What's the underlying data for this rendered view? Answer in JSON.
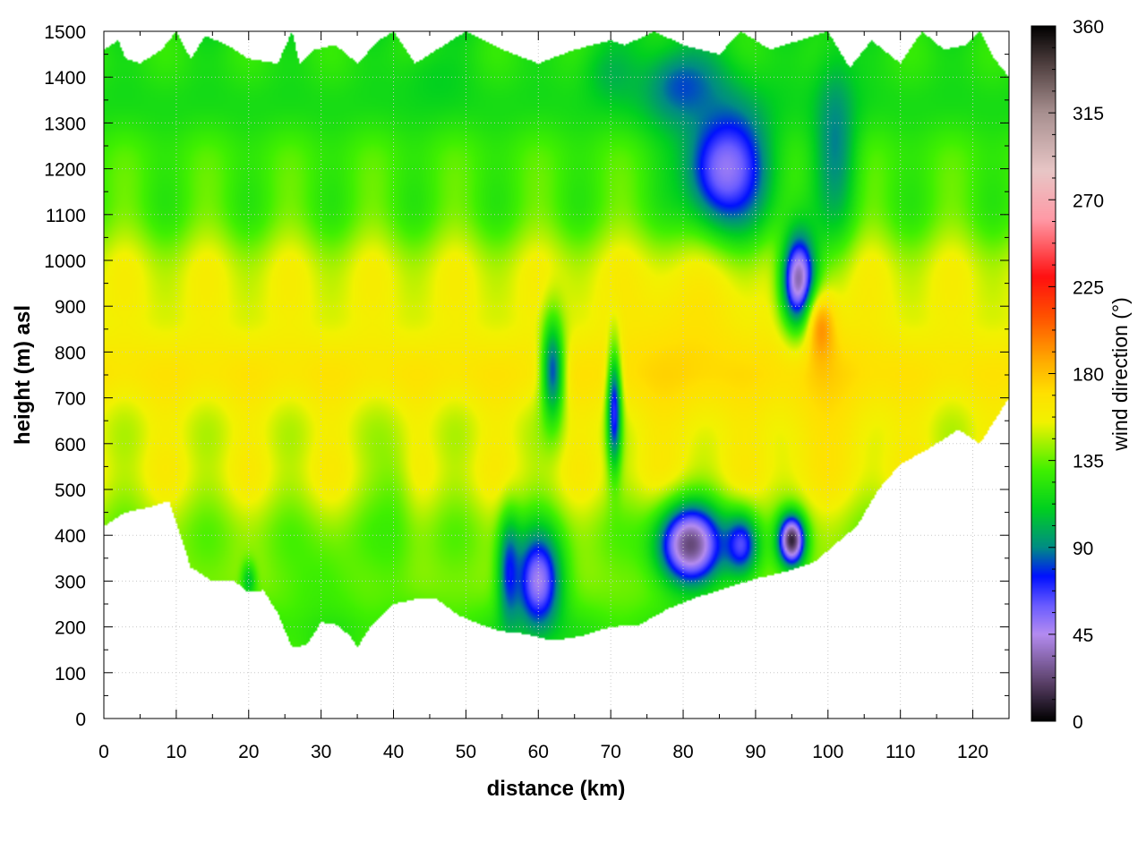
{
  "chart_data": {
    "type": "heatmap",
    "title": "",
    "xlabel": "distance (km)",
    "ylabel": "height (m) asl",
    "xlim": [
      0,
      125
    ],
    "ylim": [
      0,
      1500
    ],
    "x_ticks": [
      0,
      10,
      20,
      30,
      40,
      50,
      60,
      70,
      80,
      90,
      100,
      110,
      120
    ],
    "y_ticks": [
      0,
      100,
      200,
      300,
      400,
      500,
      600,
      700,
      800,
      900,
      1000,
      1100,
      1200,
      1300,
      1400,
      1500
    ],
    "grid": true,
    "colorbar": {
      "label": "wind direction (°)",
      "range": [
        0,
        360
      ],
      "ticks": [
        0,
        45,
        90,
        135,
        180,
        225,
        270,
        315,
        360
      ],
      "stops": [
        {
          "value": 0,
          "color": "#000000"
        },
        {
          "value": 20,
          "color": "#5a4068"
        },
        {
          "value": 45,
          "color": "#b48cf0"
        },
        {
          "value": 60,
          "color": "#6a5cff"
        },
        {
          "value": 75,
          "color": "#0010ff"
        },
        {
          "value": 90,
          "color": "#008c84"
        },
        {
          "value": 110,
          "color": "#00d020"
        },
        {
          "value": 130,
          "color": "#40f000"
        },
        {
          "value": 155,
          "color": "#f2f200"
        },
        {
          "value": 170,
          "color": "#ffe000"
        },
        {
          "value": 185,
          "color": "#ffb000"
        },
        {
          "value": 210,
          "color": "#ff5000"
        },
        {
          "value": 230,
          "color": "#ff1010"
        },
        {
          "value": 260,
          "color": "#ff9aa6"
        },
        {
          "value": 285,
          "color": "#e8c6c6"
        },
        {
          "value": 315,
          "color": "#a89090"
        },
        {
          "value": 340,
          "color": "#504040"
        },
        {
          "value": 360,
          "color": "#000000"
        }
      ]
    },
    "terrain_height": {
      "distance_km": [
        0,
        3,
        6,
        9,
        12,
        15,
        18,
        20,
        22,
        24,
        26,
        28,
        30,
        32,
        34,
        35,
        37,
        40,
        43,
        46,
        49,
        52,
        55,
        58,
        62,
        66,
        70,
        74,
        78,
        82,
        86,
        90,
        94,
        98,
        101,
        104,
        107,
        110,
        114,
        118,
        121,
        123,
        125
      ],
      "height_m": [
        420,
        450,
        460,
        475,
        330,
        300,
        300,
        275,
        280,
        230,
        155,
        160,
        210,
        205,
        180,
        155,
        205,
        250,
        260,
        260,
        225,
        205,
        190,
        185,
        170,
        180,
        200,
        205,
        240,
        265,
        285,
        305,
        320,
        340,
        380,
        420,
        500,
        555,
        590,
        630,
        600,
        650,
        700
      ]
    },
    "top_height": {
      "distance_km": [
        0,
        2,
        3,
        5,
        8,
        10,
        12,
        14,
        17,
        20,
        24,
        26,
        27,
        29,
        32,
        35,
        38,
        40,
        43,
        46,
        50,
        55,
        60,
        65,
        70,
        72,
        76,
        80,
        85,
        88,
        92,
        96,
        100,
        103,
        106,
        110,
        113,
        116,
        119,
        121,
        123,
        125
      ],
      "height_m": [
        1460,
        1480,
        1440,
        1430,
        1460,
        1500,
        1440,
        1490,
        1470,
        1440,
        1430,
        1500,
        1430,
        1460,
        1470,
        1430,
        1480,
        1500,
        1430,
        1460,
        1500,
        1460,
        1430,
        1460,
        1480,
        1470,
        1500,
        1470,
        1450,
        1500,
        1460,
        1480,
        1500,
        1420,
        1480,
        1430,
        1500,
        1460,
        1470,
        1500,
        1440,
        1400
      ]
    },
    "background_profile": [
      {
        "height_m": 200,
        "direction_deg": 128
      },
      {
        "height_m": 350,
        "direction_deg": 138
      },
      {
        "height_m": 550,
        "direction_deg": 152
      },
      {
        "height_m": 750,
        "direction_deg": 162
      },
      {
        "height_m": 900,
        "direction_deg": 158
      },
      {
        "height_m": 1050,
        "direction_deg": 140
      },
      {
        "height_m": 1200,
        "direction_deg": 126
      },
      {
        "height_m": 1500,
        "direction_deg": 116
      }
    ],
    "features": [
      {
        "x_km": 60,
        "y_m": 300,
        "sx_km": 3.2,
        "sy_m": 110,
        "direction_deg": 48,
        "weight": 1.0
      },
      {
        "x_km": 56,
        "y_m": 320,
        "sx_km": 1.6,
        "sy_m": 120,
        "direction_deg": 62,
        "weight": 0.8
      },
      {
        "x_km": 62,
        "y_m": 760,
        "sx_km": 1.6,
        "sy_m": 120,
        "direction_deg": 72,
        "weight": 0.9
      },
      {
        "x_km": 70.5,
        "y_m": 680,
        "sx_km": 1.0,
        "sy_m": 130,
        "direction_deg": 40,
        "weight": 0.9
      },
      {
        "x_km": 81,
        "y_m": 380,
        "sx_km": 4.5,
        "sy_m": 90,
        "direction_deg": 22,
        "weight": 1.0
      },
      {
        "x_km": 88,
        "y_m": 380,
        "sx_km": 2.5,
        "sy_m": 70,
        "direction_deg": 45,
        "weight": 0.8
      },
      {
        "x_km": 95,
        "y_m": 390,
        "sx_km": 1.8,
        "sy_m": 55,
        "direction_deg": 5,
        "weight": 1.0
      },
      {
        "x_km": 96,
        "y_m": 950,
        "sx_km": 2.5,
        "sy_m": 110,
        "direction_deg": 15,
        "weight": 1.0
      },
      {
        "x_km": 99,
        "y_m": 850,
        "sx_km": 2.0,
        "sy_m": 80,
        "direction_deg": 235,
        "weight": 0.6
      },
      {
        "x_km": 86,
        "y_m": 1200,
        "sx_km": 6.0,
        "sy_m": 140,
        "direction_deg": 50,
        "weight": 1.0
      },
      {
        "x_km": 80,
        "y_m": 1380,
        "sx_km": 6.0,
        "sy_m": 90,
        "direction_deg": 78,
        "weight": 0.9
      },
      {
        "x_km": 101,
        "y_m": 1250,
        "sx_km": 3.0,
        "sy_m": 200,
        "direction_deg": 80,
        "weight": 0.8
      },
      {
        "x_km": 70,
        "y_m": 1410,
        "sx_km": 4.0,
        "sy_m": 70,
        "direction_deg": 92,
        "weight": 0.6
      },
      {
        "x_km": 45,
        "y_m": 1400,
        "sx_km": 5.0,
        "sy_m": 70,
        "direction_deg": 98,
        "weight": 0.4
      },
      {
        "x_km": 40,
        "y_m": 450,
        "sx_km": 3.0,
        "sy_m": 180,
        "direction_deg": 118,
        "weight": 0.5
      },
      {
        "x_km": 30,
        "y_m": 300,
        "sx_km": 5.0,
        "sy_m": 100,
        "direction_deg": 118,
        "weight": 0.5
      },
      {
        "x_km": 20,
        "y_m": 300,
        "sx_km": 1.0,
        "sy_m": 40,
        "direction_deg": 85,
        "weight": 0.6
      },
      {
        "x_km": 80,
        "y_m": 800,
        "sx_km": 10.0,
        "sy_m": 200,
        "direction_deg": 182,
        "weight": 0.5
      },
      {
        "x_km": 100,
        "y_m": 700,
        "sx_km": 8.0,
        "sy_m": 200,
        "direction_deg": 182,
        "weight": 0.5
      }
    ]
  }
}
